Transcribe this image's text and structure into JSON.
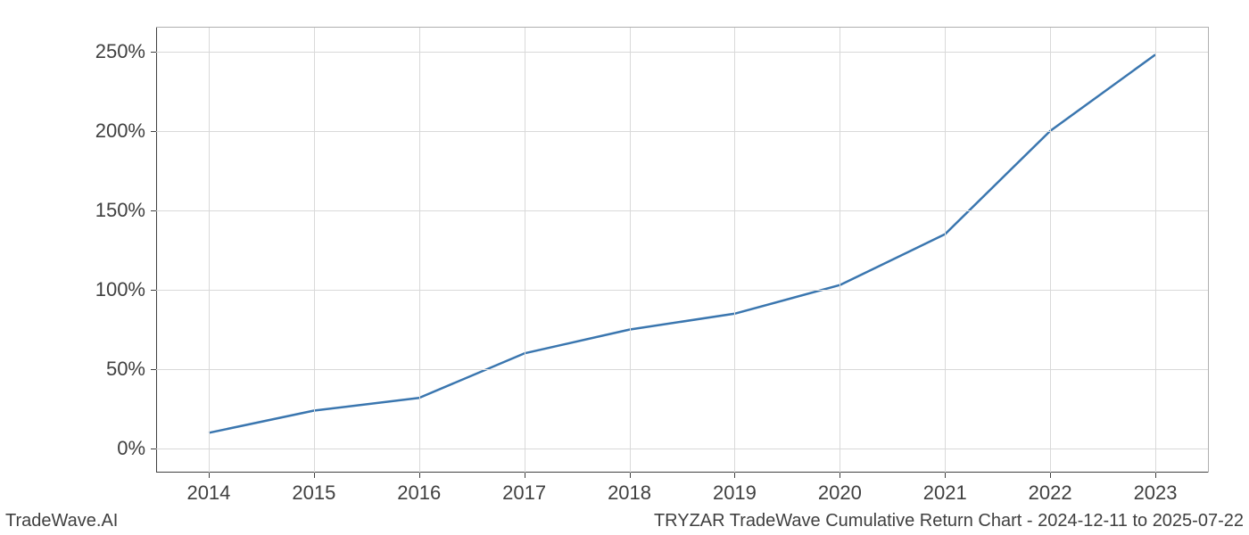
{
  "chart": {
    "type": "line",
    "background_color": "#ffffff",
    "grid_color": "#d9d9d9",
    "axis_color": "#404040",
    "spine_color_tr": "#b0b0b0",
    "line_color": "#3a76af",
    "line_width": 2.5,
    "tick_fontsize": 22,
    "tick_color": "#404040",
    "x": {
      "min": 2013.5,
      "max": 2023.5,
      "ticks": [
        2014,
        2015,
        2016,
        2017,
        2018,
        2019,
        2020,
        2021,
        2022,
        2023
      ],
      "tick_labels": [
        "2014",
        "2015",
        "2016",
        "2017",
        "2018",
        "2019",
        "2020",
        "2021",
        "2022",
        "2023"
      ]
    },
    "y": {
      "min": -15,
      "max": 265,
      "ticks": [
        0,
        50,
        100,
        150,
        200,
        250
      ],
      "tick_labels": [
        "0%",
        "50%",
        "100%",
        "150%",
        "200%",
        "250%"
      ]
    },
    "series": [
      {
        "name": "cumulative_return",
        "x": [
          2014,
          2015,
          2016,
          2017,
          2018,
          2019,
          2020,
          2021,
          2022,
          2023
        ],
        "y": [
          10,
          24,
          32,
          60,
          75,
          85,
          103,
          135,
          200,
          248
        ]
      }
    ]
  },
  "footer": {
    "left": "TradeWave.AI",
    "right": "TRYZAR TradeWave Cumulative Return Chart - 2024-12-11 to 2025-07-22",
    "fontsize": 20,
    "color": "#404040"
  }
}
